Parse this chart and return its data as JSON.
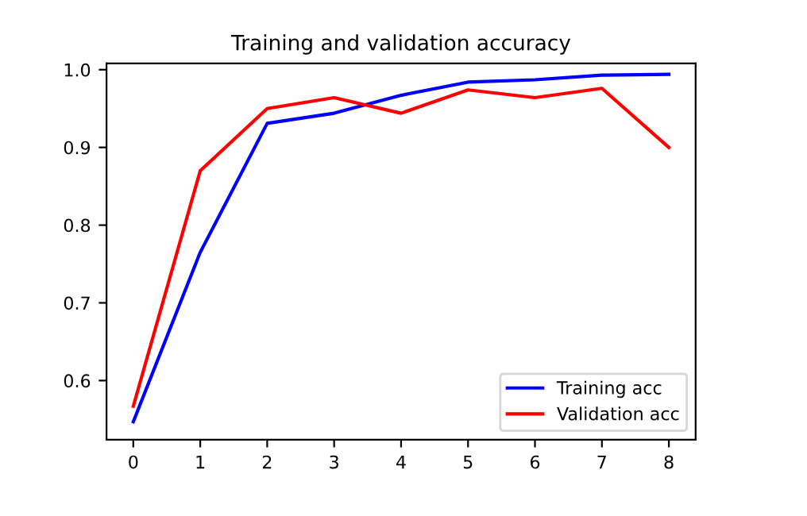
{
  "chart_data": {
    "type": "line",
    "title": "Training and validation accuracy",
    "x": [
      0,
      1,
      2,
      3,
      4,
      5,
      6,
      7,
      8
    ],
    "series": [
      {
        "name": "Training acc",
        "color": "#0000ff",
        "values": [
          0.547,
          0.765,
          0.931,
          0.944,
          0.967,
          0.984,
          0.987,
          0.993,
          0.994
        ]
      },
      {
        "name": "Validation acc",
        "color": "#ff0000",
        "values": [
          0.567,
          0.87,
          0.95,
          0.964,
          0.944,
          0.974,
          0.964,
          0.976,
          0.9
        ]
      }
    ],
    "xlim": [
      -0.4,
      8.4
    ],
    "xticks": [
      0,
      1,
      2,
      3,
      4,
      5,
      6,
      7,
      8
    ],
    "ylim": [
      0.524,
      1.008
    ],
    "yticks": [
      {
        "value": 0.6,
        "label": "0.6"
      },
      {
        "value": 0.7,
        "label": "0.7"
      },
      {
        "value": 0.8,
        "label": "0.8"
      },
      {
        "value": 0.9,
        "label": "0.9"
      },
      {
        "value": 1.0,
        "label": "1.0"
      }
    ],
    "grid": false,
    "legend": "bottom right",
    "marker": "none",
    "line_style": "solid"
  }
}
